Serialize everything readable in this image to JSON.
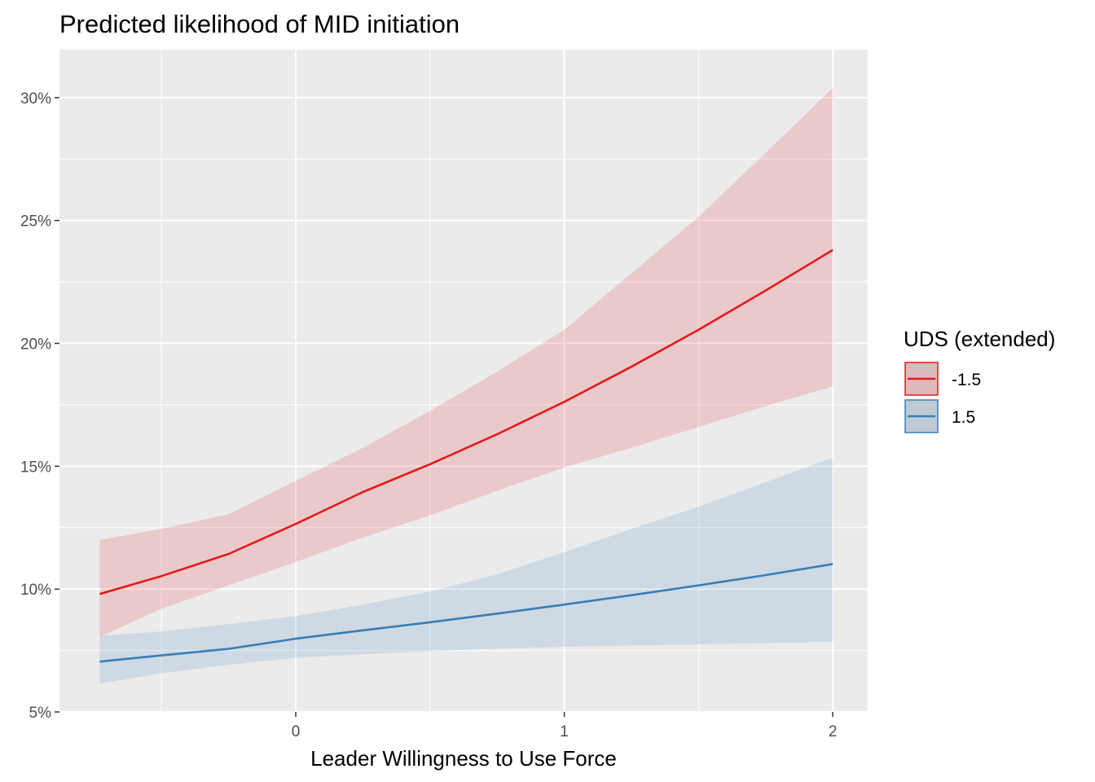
{
  "chart_data": {
    "type": "line",
    "title": "Predicted likelihood of MID initiation",
    "xlabel": "Leader Willingness to Use Force",
    "ylabel": "",
    "xlim": [
      -0.88,
      2.13
    ],
    "ylim": [
      0.05,
      0.3195
    ],
    "x_ticks": [
      0,
      1,
      2
    ],
    "x_tick_labels": [
      "0",
      "1",
      "2"
    ],
    "y_ticks": [
      0.05,
      0.1,
      0.15,
      0.2,
      0.25,
      0.3
    ],
    "y_tick_labels": [
      "5%",
      "10%",
      "15%",
      "20%",
      "25%",
      "30%"
    ],
    "grid": true,
    "legend": {
      "title": "UDS (extended)",
      "position": "right"
    },
    "series": [
      {
        "name": "-1.5",
        "color": "#e41a1c",
        "ribbon_color": "#e41a1c",
        "x": [
          -0.73,
          -0.5,
          -0.25,
          0,
          0.25,
          0.5,
          0.75,
          1,
          1.25,
          1.5,
          1.75,
          2
        ],
        "y": [
          0.098,
          0.1053,
          0.1143,
          0.1265,
          0.1395,
          0.1508,
          0.163,
          0.1762,
          0.1905,
          0.2055,
          0.2215,
          0.238
        ],
        "lower": [
          0.0805,
          0.092,
          0.1015,
          0.111,
          0.121,
          0.13,
          0.14,
          0.1495,
          0.1575,
          0.166,
          0.1745,
          0.1825
        ],
        "upper": [
          0.12,
          0.1245,
          0.1305,
          0.144,
          0.1575,
          0.1725,
          0.1885,
          0.2055,
          0.2285,
          0.2515,
          0.2775,
          0.304
        ]
      },
      {
        "name": "1.5",
        "color": "#377eb8",
        "ribbon_color": "#377eb8",
        "x": [
          -0.73,
          -0.5,
          -0.25,
          0,
          0.25,
          0.5,
          0.75,
          1,
          1.25,
          1.5,
          1.75,
          2
        ],
        "y": [
          0.0705,
          0.073,
          0.0757,
          0.0798,
          0.0832,
          0.0865,
          0.09,
          0.0937,
          0.0975,
          0.1015,
          0.1057,
          0.1102
        ],
        "lower": [
          0.0615,
          0.0657,
          0.0692,
          0.072,
          0.0735,
          0.0748,
          0.0758,
          0.0765,
          0.077,
          0.0775,
          0.078,
          0.0785
        ],
        "upper": [
          0.081,
          0.0828,
          0.0857,
          0.089,
          0.0937,
          0.099,
          0.106,
          0.115,
          0.1245,
          0.1335,
          0.1435,
          0.1535
        ]
      }
    ]
  }
}
